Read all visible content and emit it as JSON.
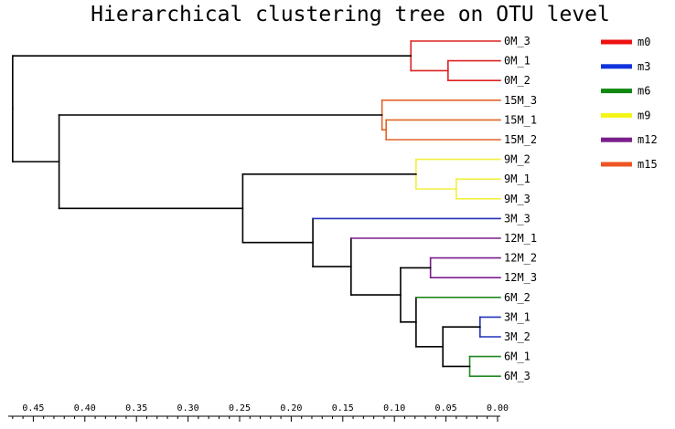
{
  "chart_data": {
    "type": "dendrogram",
    "title": "Hierarchical clustering tree on OTU level",
    "x_axis": {
      "direction": "reversed",
      "range": [
        0.0,
        0.47
      ],
      "ticks": [
        0.45,
        0.4,
        0.35,
        0.3,
        0.25,
        0.2,
        0.15,
        0.1,
        0.05,
        0.0
      ],
      "tick_labels": [
        "0.45",
        "0.40",
        "0.35",
        "0.30",
        "0.25",
        "0.20",
        "0.15",
        "0.10",
        "0.05",
        "0.00"
      ]
    },
    "leaves": [
      {
        "label": "0M_3",
        "group": "m0"
      },
      {
        "label": "0M_1",
        "group": "m0"
      },
      {
        "label": "0M_2",
        "group": "m0"
      },
      {
        "label": "15M_3",
        "group": "m15"
      },
      {
        "label": "15M_1",
        "group": "m15"
      },
      {
        "label": "15M_2",
        "group": "m15"
      },
      {
        "label": "9M_2",
        "group": "m9"
      },
      {
        "label": "9M_1",
        "group": "m9"
      },
      {
        "label": "9M_3",
        "group": "m9"
      },
      {
        "label": "3M_3",
        "group": "m3"
      },
      {
        "label": "12M_1",
        "group": "m12"
      },
      {
        "label": "12M_2",
        "group": "m12"
      },
      {
        "label": "12M_3",
        "group": "m12"
      },
      {
        "label": "6M_2",
        "group": "m6"
      },
      {
        "label": "3M_1",
        "group": "m3"
      },
      {
        "label": "3M_2",
        "group": "m3"
      },
      {
        "label": "6M_1",
        "group": "m6"
      },
      {
        "label": "6M_3",
        "group": "m6"
      }
    ],
    "tree": {
      "h": 0.47,
      "color": "#000000",
      "children": [
        {
          "h": 0.084,
          "color": "#dd2222",
          "children": [
            {
              "leaf": "0M_3"
            },
            {
              "h": 0.048,
              "color": "#dd2222",
              "children": [
                {
                  "leaf": "0M_1"
                },
                {
                  "leaf": "0M_2"
                }
              ]
            }
          ]
        },
        {
          "h": 0.425,
          "color": "#000000",
          "children": [
            {
              "h": 0.112,
              "color": "#e06428",
              "children": [
                {
                  "leaf": "15M_3"
                },
                {
                  "h": 0.108,
                  "color": "#e06428",
                  "children": [
                    {
                      "leaf": "15M_1"
                    },
                    {
                      "leaf": "15M_2"
                    }
                  ]
                }
              ]
            },
            {
              "h": 0.247,
              "color": "#000000",
              "children": [
                {
                  "h": 0.079,
                  "color": "#f0f040",
                  "children": [
                    {
                      "leaf": "9M_2"
                    },
                    {
                      "h": 0.04,
                      "color": "#f0f040",
                      "children": [
                        {
                          "leaf": "9M_1"
                        },
                        {
                          "leaf": "9M_3"
                        }
                      ]
                    }
                  ]
                },
                {
                  "h": 0.179,
                  "color": "#000000",
                  "children": [
                    {
                      "leaf": "3M_3"
                    },
                    {
                      "h": 0.142,
                      "color": "#000000",
                      "children": [
                        {
                          "leaf": "12M_1"
                        },
                        {
                          "h": 0.094,
                          "color": "#000000",
                          "children": [
                            {
                              "h": 0.065,
                              "color": "#7a1e8c",
                              "children": [
                                {
                                  "leaf": "12M_2"
                                },
                                {
                                  "leaf": "12M_3"
                                }
                              ]
                            },
                            {
                              "h": 0.079,
                              "color": "#000000",
                              "children": [
                                {
                                  "leaf": "6M_2"
                                },
                                {
                                  "h": 0.053,
                                  "color": "#000000",
                                  "children": [
                                    {
                                      "h": 0.017,
                                      "color": "#2233bb",
                                      "children": [
                                        {
                                          "leaf": "3M_1"
                                        },
                                        {
                                          "leaf": "3M_2"
                                        }
                                      ]
                                    },
                                    {
                                      "h": 0.027,
                                      "color": "#228822",
                                      "children": [
                                        {
                                          "leaf": "6M_1"
                                        },
                                        {
                                          "leaf": "6M_3"
                                        }
                                      ]
                                    }
                                  ]
                                }
                              ]
                            }
                          ]
                        }
                      ]
                    }
                  ]
                }
              ]
            }
          ]
        }
      ]
    },
    "legend": {
      "position": "top-right",
      "items": [
        {
          "label": "m0",
          "color": "#ee1111"
        },
        {
          "label": "m3",
          "color": "#1133dd"
        },
        {
          "label": "m6",
          "color": "#118811"
        },
        {
          "label": "m9",
          "color": "#f5f515"
        },
        {
          "label": "m12",
          "color": "#7a1e8c"
        },
        {
          "label": "m15",
          "color": "#ee5522"
        }
      ]
    },
    "leaf_colors": {
      "m0": "#dd2222",
      "m3": "#2233bb",
      "m6": "#228822",
      "m9": "#f0f040",
      "m12": "#7a1e8c",
      "m15": "#e06428"
    }
  }
}
